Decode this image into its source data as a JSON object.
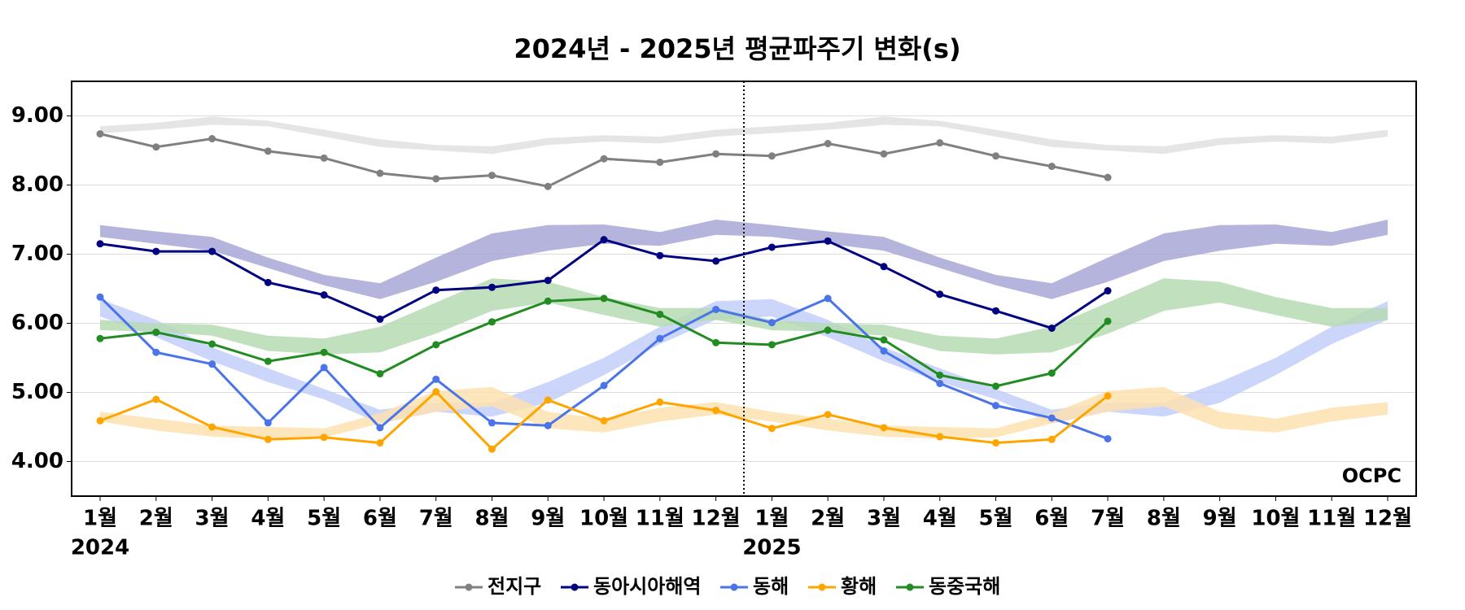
{
  "chart_data": {
    "type": "line",
    "title": "2024년 - 2025년 평균파주기 변화(s)",
    "groups": [
      {
        "name": "2024",
        "categories": [
          "1월",
          "2월",
          "3월",
          "4월",
          "5월",
          "6월",
          "7월",
          "8월",
          "9월",
          "10월",
          "11월",
          "12월"
        ]
      },
      {
        "name": "2025",
        "categories": [
          "1월",
          "2월",
          "3월",
          "4월",
          "5월",
          "6월",
          "7월",
          "8월",
          "9월",
          "10월",
          "11월",
          "12월"
        ]
      }
    ],
    "ylim": [
      3.5,
      9.5
    ],
    "yticks": [
      {
        "value": 4,
        "label": "4.00"
      },
      {
        "value": 5,
        "label": "5.00"
      },
      {
        "value": 6,
        "label": "6.00"
      },
      {
        "value": 7,
        "label": "7.00"
      },
      {
        "value": 8,
        "label": "8.00"
      },
      {
        "value": 9,
        "label": "9.00"
      }
    ],
    "grid": true,
    "legend": "bottom",
    "logo": "OCPC",
    "series": [
      {
        "name": "전지구",
        "color": "#808080",
        "band_color": "#e0e0e0",
        "values": [
          8.74,
          8.55,
          8.67,
          8.49,
          8.39,
          8.17,
          8.09,
          8.14,
          7.98,
          8.38,
          8.33,
          8.45,
          8.42,
          8.6,
          8.45,
          8.61,
          8.42,
          8.27,
          8.11
        ],
        "band_upper": [
          8.85,
          8.9,
          8.99,
          8.93,
          8.8,
          8.66,
          8.58,
          8.56,
          8.68,
          8.72,
          8.7,
          8.8
        ],
        "band_lower": [
          8.75,
          8.8,
          8.87,
          8.85,
          8.7,
          8.55,
          8.5,
          8.45,
          8.58,
          8.63,
          8.6,
          8.7
        ]
      },
      {
        "name": "동아시아해역",
        "color": "#000080",
        "band_color": "#a7a7d6",
        "values": [
          7.15,
          7.04,
          7.04,
          6.59,
          6.41,
          6.06,
          6.48,
          6.52,
          6.62,
          7.21,
          6.98,
          6.9,
          7.1,
          7.19,
          6.82,
          6.42,
          6.18,
          5.93,
          6.47
        ],
        "band_upper": [
          7.42,
          7.33,
          7.25,
          6.95,
          6.7,
          6.58,
          6.95,
          7.3,
          7.42,
          7.43,
          7.32,
          7.5
        ],
        "band_lower": [
          7.25,
          7.15,
          7.05,
          6.8,
          6.55,
          6.35,
          6.6,
          6.9,
          7.05,
          7.15,
          7.12,
          7.28
        ]
      },
      {
        "name": "동해",
        "color": "#4a74e8",
        "band_color": "#c3cffa",
        "values": [
          6.38,
          5.58,
          5.41,
          4.56,
          5.36,
          4.49,
          5.19,
          4.56,
          4.52,
          5.1,
          5.78,
          6.2,
          6.01,
          6.36,
          5.6,
          5.13,
          4.81,
          4.63,
          4.33
        ],
        "band_upper": [
          6.35,
          6.05,
          5.65,
          5.35,
          5.05,
          4.75,
          4.85,
          4.85,
          5.15,
          5.5,
          5.95,
          6.32
        ],
        "band_lower": [
          6.1,
          5.8,
          5.45,
          5.15,
          4.9,
          4.55,
          4.72,
          4.65,
          4.85,
          5.25,
          5.7,
          6.05
        ]
      },
      {
        "name": "황해",
        "color": "#ffa500",
        "band_color": "#fde0b0",
        "values": [
          4.59,
          4.9,
          4.5,
          4.32,
          4.35,
          4.27,
          5.01,
          4.18,
          4.89,
          4.59,
          4.86,
          4.74,
          4.48,
          4.68,
          4.49,
          4.36,
          4.27,
          4.32,
          4.95
        ],
        "band_upper": [
          4.72,
          4.62,
          4.52,
          4.5,
          4.48,
          4.7,
          5.02,
          5.08,
          4.72,
          4.62,
          4.78,
          4.86
        ],
        "band_lower": [
          4.58,
          4.45,
          4.36,
          4.33,
          4.35,
          4.55,
          4.72,
          4.8,
          4.48,
          4.42,
          4.58,
          4.68
        ]
      },
      {
        "name": "동중국해",
        "color": "#228b22",
        "band_color": "#b5dbb3",
        "values": [
          5.78,
          5.87,
          5.7,
          5.45,
          5.58,
          5.27,
          5.69,
          6.02,
          6.32,
          6.36,
          6.13,
          5.72,
          5.69,
          5.9,
          5.76,
          5.25,
          5.09,
          5.28,
          6.03
        ],
        "band_upper": [
          6.05,
          6.0,
          5.98,
          5.82,
          5.78,
          5.95,
          6.3,
          6.65,
          6.6,
          6.38,
          6.22,
          6.22
        ],
        "band_lower": [
          5.9,
          5.88,
          5.82,
          5.6,
          5.55,
          5.58,
          5.85,
          6.18,
          6.3,
          6.12,
          5.95,
          6.05
        ]
      }
    ]
  }
}
